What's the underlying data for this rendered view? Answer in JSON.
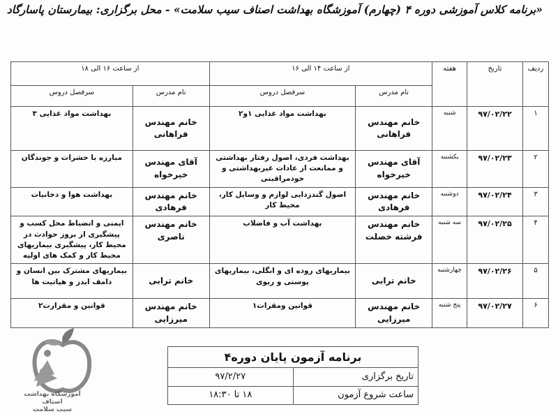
{
  "title": "«برنامه کلاس آموزشی دوره ۴ (چهارم) آموزشگاه بهداشت اصناف سیب سلامت» - محل برگزاری: بیمارستان پاسارگاد",
  "schedule": {
    "headers": {
      "row_num": "ردیف",
      "date": "تاریخ",
      "weekday": "هفته",
      "slot1": "از ساعت ۱۴ الی ۱۶",
      "slot2": "از ساعت ۱۶ الی ۱۸",
      "teacher": "نام مدرس",
      "topics": "سرفصل دروس"
    },
    "rows": [
      {
        "num": "۱",
        "date": "۹۷/۰۲/۲۲",
        "day": "شنبه",
        "teacher1": "خانم مهندس فراهانی",
        "topic1": "بهداشت مواد غذایی ۱و۲",
        "teacher2": "خانم مهندس فراهانی",
        "topic2": "بهداشت مواد غذایی ۳"
      },
      {
        "num": "۲",
        "date": "۹۷/۰۲/۲۳",
        "day": "یکشنبه",
        "teacher1": "آقای مهندس خیرخواه",
        "topic1": "بهداشت فردی، اصول رفتار بهداشتی و ممانعت از عادات غیربهداشتی و خودمراقبتی",
        "teacher2": "آقای مهندس خیرخواه",
        "topic2": "مبارزه با حشرات و جوندگان"
      },
      {
        "num": "۳",
        "date": "۹۷/۰۲/۲۴",
        "day": "دوشنبه",
        "teacher1": "خانم مهندس فرهادی",
        "topic1": "اصول گندزدایی لوازم و وسایل کار، محیط کار",
        "teacher2": "خانم مهندس فرهادی",
        "topic2": "بهداشت هوا و دخانیات"
      },
      {
        "num": "۴",
        "date": "۹۷/۰۲/۲۵",
        "day": "سه شنبه",
        "teacher1": "خانم مهندس فرشته خصلت",
        "topic1": "بهداشت آب و فاضلاب",
        "teacher2": "خانم مهندس ناصری",
        "topic2": "ایمنی و انضباط محل کسب و پیشگیری از بروز حوادث در محیط کار، پیشگیری بیماریهای محیط کار و کمک های اولیه"
      },
      {
        "num": "۵",
        "date": "۹۷/۰۲/۲۶",
        "day": "چهارشنبه",
        "teacher1": "خانم ترابی",
        "topic1": "بیماریهای روده ای و انگلی، بیماریهای پوستی و ریوی",
        "teacher2": "خانم ترابی",
        "topic2": "بیماریهای مشترک بین انسان و دامف ایدز و هپاتیت ها"
      },
      {
        "num": "۶",
        "date": "۹۷/۰۲/۲۷",
        "day": "پنج شنبه",
        "teacher1": "خانم مهندس میرزایی",
        "topic1": "قوانین ومقرات۱",
        "teacher2": "خانم مهندس میرزایی",
        "topic2": "قوانین و مقرارت۲"
      }
    ]
  },
  "exam": {
    "title": "برنامه آزمون پایان دوره۴",
    "date_label": "تاریخ برگزاری",
    "date_value": "۹۷/۲/۲۷",
    "time_label": "ساعت شروع آزمون",
    "time_value": "۱۸ تا ۱۸:۳۰"
  },
  "logo": {
    "line1": "آموزشگاه بهداشت اصناف",
    "line2": "سیب سلامت",
    "colors": {
      "apple": "#888888",
      "leaf": "#777777"
    }
  }
}
